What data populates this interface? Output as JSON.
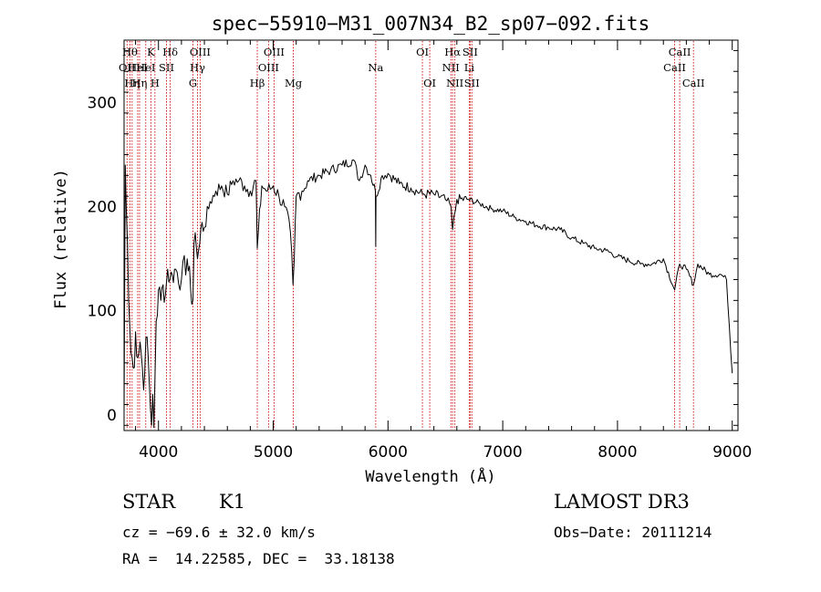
{
  "chart_data": {
    "type": "line",
    "title": "spec−55910−M31_007N34_B2_sp07−092.fits",
    "xlabel": "Wavelength (Å)",
    "ylabel": "Flux (relative)",
    "xlim": [
      3700,
      9050
    ],
    "ylim": [
      -15,
      360
    ],
    "xticks": [
      4000,
      5000,
      6000,
      7000,
      8000,
      9000
    ],
    "xtick_labels": [
      "4000",
      "5000",
      "6000",
      "7000",
      "8000",
      "9000"
    ],
    "yticks": [
      0,
      100,
      200,
      300
    ],
    "ytick_labels": [
      "0",
      "100",
      "200",
      "300"
    ],
    "series": [
      {
        "name": "spectrum",
        "x": [
          3700,
          3710,
          3720,
          3730,
          3740,
          3760,
          3780,
          3800,
          3820,
          3840,
          3860,
          3880,
          3900,
          3920,
          3940,
          3950,
          3960,
          3970,
          3980,
          4000,
          4020,
          4040,
          4060,
          4080,
          4100,
          4120,
          4150,
          4200,
          4250,
          4280,
          4300,
          4310,
          4320,
          4340,
          4360,
          4380,
          4400,
          4450,
          4500,
          4550,
          4600,
          4650,
          4700,
          4750,
          4800,
          4850,
          4861,
          4900,
          4950,
          5000,
          5050,
          5100,
          5150,
          5172,
          5183,
          5200,
          5250,
          5300,
          5400,
          5500,
          5600,
          5700,
          5750,
          5800,
          5850,
          5890,
          5893,
          5896,
          5950,
          6000,
          6100,
          6200,
          6300,
          6400,
          6500,
          6550,
          6563,
          6600,
          6700,
          6800,
          6900,
          7000,
          7100,
          7200,
          7300,
          7400,
          7500,
          7600,
          7700,
          7800,
          7900,
          8000,
          8100,
          8200,
          8300,
          8400,
          8498,
          8542,
          8600,
          8662,
          8700,
          8800,
          8900,
          8950,
          9000
        ],
        "y": [
          0,
          240,
          195,
          165,
          110,
          60,
          45,
          80,
          55,
          70,
          45,
          40,
          75,
          30,
          -10,
          20,
          -12,
          40,
          90,
          120,
          110,
          125,
          115,
          140,
          130,
          135,
          140,
          130,
          150,
          120,
          110,
          165,
          175,
          150,
          165,
          185,
          180,
          205,
          215,
          220,
          212,
          225,
          225,
          220,
          215,
          225,
          160,
          220,
          215,
          220,
          210,
          200,
          175,
          125,
          150,
          210,
          215,
          225,
          230,
          235,
          240,
          245,
          225,
          240,
          230,
          215,
          162,
          210,
          230,
          232,
          222,
          218,
          212,
          212,
          207,
          200,
          178,
          207,
          207,
          203,
          198,
          196,
          190,
          186,
          182,
          180,
          178,
          170,
          165,
          160,
          158,
          152,
          148,
          145,
          145,
          150,
          120,
          145,
          140,
          125,
          145,
          135,
          135,
          130,
          40
        ]
      }
    ],
    "lines": [
      {
        "wave": 3726,
        "label": "OII",
        "row": 1
      },
      {
        "wave": 3751,
        "label": "Hθ",
        "row": 0
      },
      {
        "wave": 3770,
        "label": "Hη",
        "row": 2
      },
      {
        "wave": 3819,
        "label": "HeI",
        "row": 1
      },
      {
        "wave": 3835,
        "label": "Hη",
        "row": 2
      },
      {
        "wave": 3889,
        "label": "HeI",
        "row": 1
      },
      {
        "wave": 3934,
        "label": "K",
        "row": 0
      },
      {
        "wave": 3969,
        "label": "H",
        "row": 2
      },
      {
        "wave": 4070,
        "label": "SII",
        "row": 1
      },
      {
        "wave": 4102,
        "label": "Hδ",
        "row": 0
      },
      {
        "wave": 4300,
        "label": "G",
        "row": 2
      },
      {
        "wave": 4340,
        "label": "Hγ",
        "row": 1
      },
      {
        "wave": 4363,
        "label": "OIII",
        "row": 0
      },
      {
        "wave": 4861,
        "label": "Hβ",
        "row": 2
      },
      {
        "wave": 4959,
        "label": "OIII",
        "row": 1
      },
      {
        "wave": 5007,
        "label": "OIII",
        "row": 0
      },
      {
        "wave": 5175,
        "label": "Mg",
        "row": 2
      },
      {
        "wave": 5893,
        "label": "Na",
        "row": 1
      },
      {
        "wave": 6300,
        "label": "OI",
        "row": 0
      },
      {
        "wave": 6364,
        "label": "OI",
        "row": 2
      },
      {
        "wave": 6548,
        "label": "NII",
        "row": 1
      },
      {
        "wave": 6563,
        "label": "Hα",
        "row": 0
      },
      {
        "wave": 6583,
        "label": "NII",
        "row": 2
      },
      {
        "wave": 6708,
        "label": "Li",
        "row": 1
      },
      {
        "wave": 6716,
        "label": "SII",
        "row": 0
      },
      {
        "wave": 6731,
        "label": "SII",
        "row": 2
      },
      {
        "wave": 8498,
        "label": "CaII",
        "row": 1
      },
      {
        "wave": 8542,
        "label": "CaII",
        "row": 0
      },
      {
        "wave": 8662,
        "label": "CaII",
        "row": 2
      }
    ],
    "line_color": "#cc0000",
    "spectrum_color": "#000000"
  },
  "info": {
    "class": "STAR",
    "subclass": "K1",
    "survey": "LAMOST DR3",
    "cz": "cz = −69.6 ± 32.0 km/s",
    "obs_date": "Obs−Date: 20111214",
    "coords": "RA =  14.22585, DEC =  33.18138"
  }
}
